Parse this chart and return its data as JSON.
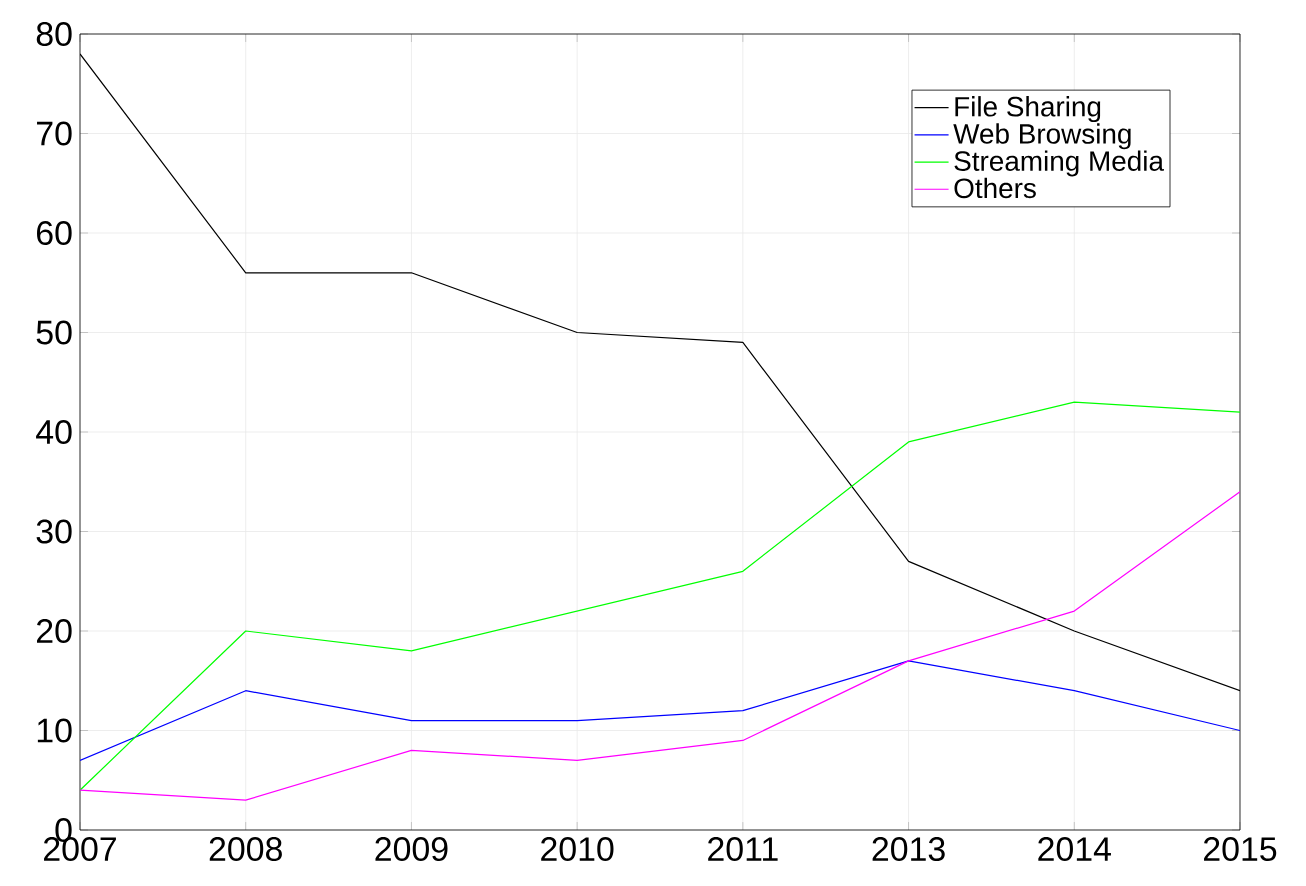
{
  "chart_data": {
    "type": "line",
    "categories": [
      "2007",
      "2008",
      "2009",
      "2010",
      "2011",
      "2013",
      "2014",
      "2015"
    ],
    "series": [
      {
        "name": "File Sharing",
        "color": "#000000",
        "values": [
          78,
          56,
          56,
          50,
          49,
          27,
          20,
          14
        ]
      },
      {
        "name": "Web Browsing",
        "color": "#0000ff",
        "values": [
          7,
          14,
          11,
          11,
          12,
          17,
          14,
          10
        ]
      },
      {
        "name": "Streaming Media",
        "color": "#00ff00",
        "values": [
          4,
          20,
          18,
          22,
          26,
          39,
          43,
          42
        ]
      },
      {
        "name": "Others",
        "color": "#ff00ff",
        "values": [
          4,
          3,
          8,
          7,
          9,
          17,
          22,
          34
        ]
      }
    ],
    "ylim": [
      0,
      80
    ],
    "yticks": [
      0,
      10,
      20,
      30,
      40,
      50,
      60,
      70,
      80
    ],
    "grid": true,
    "legend": "top right",
    "marker": "none",
    "line_style": "solid"
  }
}
